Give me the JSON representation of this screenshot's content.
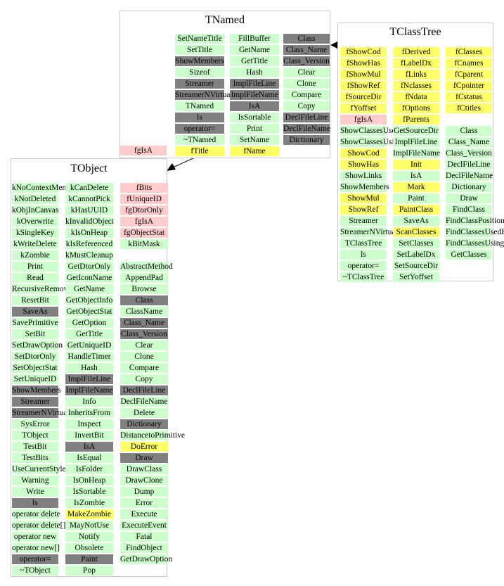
{
  "colors": {
    "method": "#ccffcc",
    "inherited": "#808080",
    "data_member": "#ffff66",
    "private_member": "#ffcccc",
    "edge": "#000000",
    "border": "#c8c8c8"
  },
  "classes": {
    "tnamed": {
      "title": "TNamed",
      "columns": [
        [
          [
            "SetNameTitle",
            "m"
          ],
          [
            "SetTitle",
            "m"
          ],
          [
            "ShowMembers",
            "d"
          ],
          [
            "Sizeof",
            "m"
          ],
          [
            "Streamer",
            "d"
          ],
          [
            "StreamerNVirtual",
            "d"
          ],
          [
            "TNamed",
            "m"
          ],
          [
            "ls",
            "d"
          ],
          [
            "operator=",
            "d"
          ],
          [
            "~TNamed",
            "m"
          ],
          [
            "fTitle",
            "y"
          ]
        ],
        [
          [
            "FillBuffer",
            "m"
          ],
          [
            "GetName",
            "m"
          ],
          [
            "GetTitle",
            "m"
          ],
          [
            "Hash",
            "m"
          ],
          [
            "ImplFileLine",
            "d"
          ],
          [
            "ImplFileName",
            "d"
          ],
          [
            "IsA",
            "d"
          ],
          [
            "IsSortable",
            "m"
          ],
          [
            "Print",
            "m"
          ],
          [
            "SetName",
            "m"
          ],
          [
            "fName",
            "y"
          ]
        ],
        [
          [
            "Class",
            "d"
          ],
          [
            "Class_Name",
            "d"
          ],
          [
            "Class_Version",
            "d"
          ],
          [
            "Clear",
            "m"
          ],
          [
            "Clone",
            "m"
          ],
          [
            "Compare",
            "m"
          ],
          [
            "Copy",
            "m"
          ],
          [
            "DeclFileLine",
            "d"
          ],
          [
            "DeclFileName",
            "d"
          ],
          [
            "Dictionary",
            "d"
          ]
        ]
      ]
    },
    "tclasstree": {
      "title": "TClassTree",
      "columns": [
        [
          [
            "fShowCod",
            "y"
          ],
          [
            "fShowHas",
            "y"
          ],
          [
            "fShowMul",
            "y"
          ],
          [
            "fShowRef",
            "y"
          ],
          [
            "fSourceDir",
            "y"
          ],
          [
            "fYoffset",
            "y"
          ],
          [
            "fgIsA",
            "p"
          ],
          [
            "ShowClassesUsedBy",
            "m"
          ],
          [
            "ShowClassesUsing",
            "m"
          ],
          [
            "ShowCod",
            "y"
          ],
          [
            "ShowHas",
            "y"
          ],
          [
            "ShowLinks",
            "m"
          ],
          [
            "ShowMembers",
            "m"
          ],
          [
            "ShowMul",
            "y"
          ],
          [
            "ShowRef",
            "y"
          ],
          [
            "Streamer",
            "m"
          ],
          [
            "StreamerNVirtual",
            "m"
          ],
          [
            "TClassTree",
            "m"
          ],
          [
            "ls",
            "m"
          ],
          [
            "operator=",
            "m"
          ],
          [
            "~TClassTree",
            "m"
          ]
        ],
        [
          [
            "fDerived",
            "y"
          ],
          [
            "fLabelDx",
            "y"
          ],
          [
            "fLinks",
            "y"
          ],
          [
            "fNclasses",
            "y"
          ],
          [
            "fNdata",
            "y"
          ],
          [
            "fOptions",
            "y"
          ],
          [
            "fParents",
            "y"
          ],
          [
            "GetSourceDir",
            "m"
          ],
          [
            "ImplFileLine",
            "m"
          ],
          [
            "ImplFileName",
            "m"
          ],
          [
            "Init",
            "y"
          ],
          [
            "IsA",
            "m"
          ],
          [
            "Mark",
            "y"
          ],
          [
            "Paint",
            "m"
          ],
          [
            "PaintClass",
            "y"
          ],
          [
            "SaveAs",
            "m"
          ],
          [
            "ScanClasses",
            "y"
          ],
          [
            "SetClasses",
            "m"
          ],
          [
            "SetLabelDx",
            "m"
          ],
          [
            "SetSourceDir",
            "m"
          ],
          [
            "SetYoffset",
            "m"
          ]
        ],
        [
          [
            "fClasses",
            "y"
          ],
          [
            "fCnames",
            "y"
          ],
          [
            "fCparent",
            "y"
          ],
          [
            "fCpointer",
            "y"
          ],
          [
            "fCstatus",
            "y"
          ],
          [
            "fCtitles",
            "y"
          ],
          [
            "",
            "n"
          ],
          [
            "Class",
            "m"
          ],
          [
            "Class_Name",
            "m"
          ],
          [
            "Class_Version",
            "m"
          ],
          [
            "DeclFileLine",
            "m"
          ],
          [
            "DeclFileName",
            "m"
          ],
          [
            "Dictionary",
            "m"
          ],
          [
            "Draw",
            "m"
          ],
          [
            "FindClass",
            "m"
          ],
          [
            "FindClassPosition",
            "m"
          ],
          [
            "FindClassesUsedBy",
            "m"
          ],
          [
            "FindClassesUsing",
            "m"
          ],
          [
            "GetClasses",
            "m"
          ]
        ]
      ]
    },
    "tobject": {
      "title": "TObject",
      "tnamed_fgisa": "fgIsA",
      "columns": [
        [
          [
            "kNoContextMenu",
            "m"
          ],
          [
            "kNotDeleted",
            "m"
          ],
          [
            "kObjInCanvas",
            "m"
          ],
          [
            "kOverwrite",
            "m"
          ],
          [
            "kSingleKey",
            "m"
          ],
          [
            "kWriteDelete",
            "m"
          ],
          [
            "kZombie",
            "m"
          ],
          [
            "Print",
            "m"
          ],
          [
            "Read",
            "m"
          ],
          [
            "RecursiveRemove",
            "m"
          ],
          [
            "ResetBit",
            "m"
          ],
          [
            "SaveAs",
            "d"
          ],
          [
            "SavePrimitive",
            "m"
          ],
          [
            "SetBit",
            "m"
          ],
          [
            "SetDrawOption",
            "m"
          ],
          [
            "SetDtorOnly",
            "m"
          ],
          [
            "SetObjectStat",
            "m"
          ],
          [
            "SetUniqueID",
            "m"
          ],
          [
            "ShowMembers",
            "d"
          ],
          [
            "Streamer",
            "d"
          ],
          [
            "StreamerNVirtual",
            "d"
          ],
          [
            "SysError",
            "m"
          ],
          [
            "TObject",
            "m"
          ],
          [
            "TestBit",
            "m"
          ],
          [
            "TestBits",
            "m"
          ],
          [
            "UseCurrentStyle",
            "m"
          ],
          [
            "Warning",
            "m"
          ],
          [
            "Write",
            "m"
          ],
          [
            "ls",
            "d"
          ],
          [
            "operator delete",
            "m"
          ],
          [
            "operator delete[]",
            "m"
          ],
          [
            "operator new",
            "m"
          ],
          [
            "operator new[]",
            "m"
          ],
          [
            "operator=",
            "d"
          ],
          [
            "~TObject",
            "m"
          ]
        ],
        [
          [
            "kCanDelete",
            "m"
          ],
          [
            "kCannotPick",
            "m"
          ],
          [
            "kHasUUID",
            "m"
          ],
          [
            "kInvalidObject",
            "m"
          ],
          [
            "kIsOnHeap",
            "m"
          ],
          [
            "kIsReferenced",
            "m"
          ],
          [
            "kMustCleanup",
            "m"
          ],
          [
            "GetDtorOnly",
            "m"
          ],
          [
            "GetIconName",
            "m"
          ],
          [
            "GetName",
            "m"
          ],
          [
            "GetObjectInfo",
            "m"
          ],
          [
            "GetObjectStat",
            "m"
          ],
          [
            "GetOption",
            "m"
          ],
          [
            "GetTitle",
            "m"
          ],
          [
            "GetUniqueID",
            "m"
          ],
          [
            "HandleTimer",
            "m"
          ],
          [
            "Hash",
            "m"
          ],
          [
            "ImplFileLine",
            "d"
          ],
          [
            "ImplFileName",
            "d"
          ],
          [
            "Info",
            "m"
          ],
          [
            "InheritsFrom",
            "m"
          ],
          [
            "Inspect",
            "m"
          ],
          [
            "InvertBit",
            "m"
          ],
          [
            "IsA",
            "d"
          ],
          [
            "IsEqual",
            "m"
          ],
          [
            "IsFolder",
            "m"
          ],
          [
            "IsOnHeap",
            "m"
          ],
          [
            "IsSortable",
            "m"
          ],
          [
            "IsZombie",
            "m"
          ],
          [
            "MakeZombie",
            "y"
          ],
          [
            "MayNotUse",
            "m"
          ],
          [
            "Notify",
            "m"
          ],
          [
            "Obsolete",
            "m"
          ],
          [
            "Paint",
            "d"
          ],
          [
            "Pop",
            "m"
          ]
        ],
        [
          [
            "fBits",
            "p"
          ],
          [
            "fUniqueID",
            "p"
          ],
          [
            "fgDtorOnly",
            "p"
          ],
          [
            "fgIsA",
            "p"
          ],
          [
            "fgObjectStat",
            "p"
          ],
          [
            "kBitMask",
            "m"
          ],
          [
            "",
            "n"
          ],
          [
            "AbstractMethod",
            "m"
          ],
          [
            "AppendPad",
            "m"
          ],
          [
            "Browse",
            "m"
          ],
          [
            "Class",
            "d"
          ],
          [
            "ClassName",
            "m"
          ],
          [
            "Class_Name",
            "d"
          ],
          [
            "Class_Version",
            "d"
          ],
          [
            "Clear",
            "m"
          ],
          [
            "Clone",
            "m"
          ],
          [
            "Compare",
            "m"
          ],
          [
            "Copy",
            "m"
          ],
          [
            "DeclFileLine",
            "d"
          ],
          [
            "DeclFileName",
            "m"
          ],
          [
            "Delete",
            "m"
          ],
          [
            "Dictionary",
            "d"
          ],
          [
            "DistancetoPrimitive",
            "m"
          ],
          [
            "DoError",
            "y"
          ],
          [
            "Draw",
            "d"
          ],
          [
            "DrawClass",
            "m"
          ],
          [
            "DrawClone",
            "m"
          ],
          [
            "Dump",
            "m"
          ],
          [
            "Error",
            "m"
          ],
          [
            "Execute",
            "m"
          ],
          [
            "ExecuteEvent",
            "m"
          ],
          [
            "Fatal",
            "m"
          ],
          [
            "FindObject",
            "m"
          ],
          [
            "GetDrawOption",
            "m"
          ]
        ]
      ]
    }
  }
}
